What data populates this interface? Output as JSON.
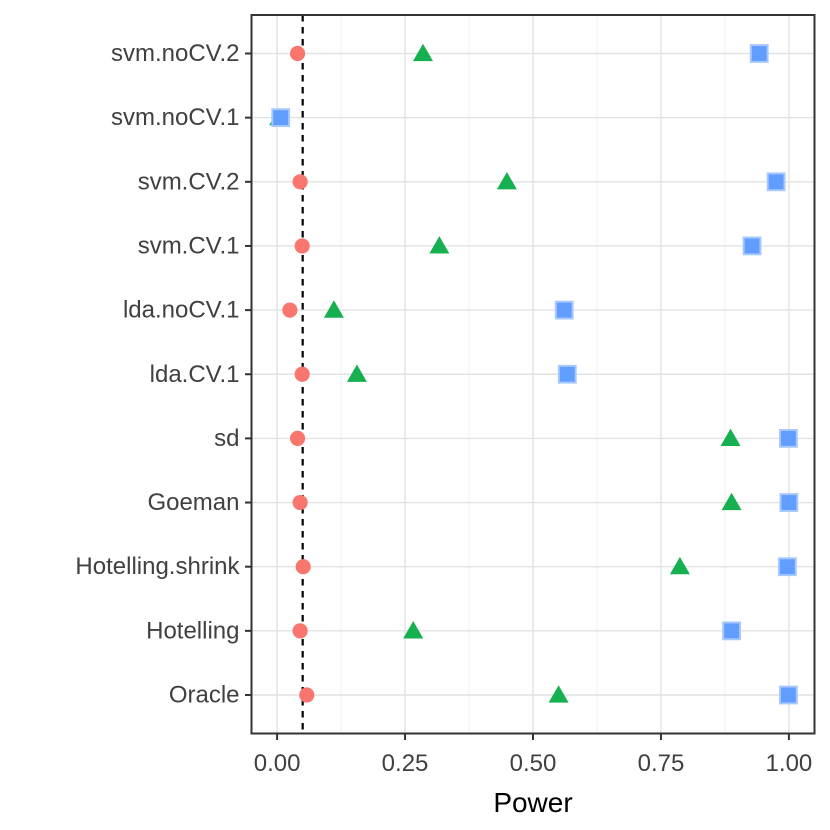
{
  "chart_data": {
    "type": "scatter",
    "orientation": "horizontal-dotplot",
    "title": "",
    "xlabel": "Power",
    "ylabel": "",
    "xlim": [
      -0.05,
      1.05
    ],
    "x_tick_labels": [
      "0.00",
      "0.25",
      "0.50",
      "0.75",
      "1.00"
    ],
    "x_tick_values": [
      0,
      0.25,
      0.5,
      0.75,
      1.0
    ],
    "x_minor_gridlines": [
      0.125,
      0.375,
      0.625,
      0.875
    ],
    "grid": true,
    "legend_position": "none",
    "categories": [
      "svm.noCV.2",
      "svm.noCV.1",
      "svm.CV.2",
      "svm.CV.1",
      "lda.noCV.1",
      "lda.CV.1",
      "sd",
      "Goeman",
      "Hotelling.shrink",
      "Hotelling",
      "Oracle"
    ],
    "threshold_line": {
      "value": 0.05,
      "style": "dashed",
      "color": "#000000"
    },
    "series": [
      {
        "name": "circle-series",
        "marker": "circle",
        "color": "#F8766D",
        "values": [
          0.04,
          null,
          0.045,
          0.049,
          0.025,
          0.049,
          0.04,
          0.045,
          0.051,
          0.045,
          0.058
        ]
      },
      {
        "name": "triangle-series",
        "marker": "triangle",
        "color": "#17B050",
        "values": [
          0.285,
          0.004,
          0.449,
          0.317,
          0.111,
          0.156,
          0.886,
          0.888,
          0.787,
          0.266,
          0.55
        ]
      },
      {
        "name": "square-series",
        "marker": "square",
        "color": "#619CFF",
        "border_color": "#A6C8FF",
        "values": [
          0.942,
          0.007,
          0.975,
          0.928,
          0.561,
          0.567,
          0.999,
          1.0,
          0.997,
          0.888,
          0.999
        ]
      }
    ],
    "style_colors": {
      "panel_border": "#333333",
      "major_gridline": "#E2E2E2",
      "minor_gridline": "#EFEFEF",
      "tick_mark": "#333333",
      "tick_label": "#404040",
      "axis_title": "#000000",
      "background": "#FFFFFF"
    }
  }
}
